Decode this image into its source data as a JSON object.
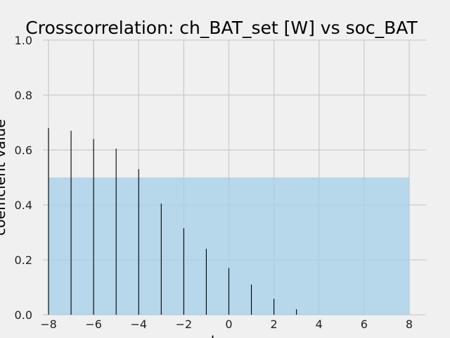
{
  "chart_data": {
    "type": "bar",
    "title": "Crosscorrelation: ch_BAT_set [W] vs soc_BAT",
    "xlabel": "lag",
    "ylabel": "coefficient value",
    "xlim": [
      -8.25,
      8.75
    ],
    "ylim": [
      0,
      1.0
    ],
    "xticks": [
      -8,
      -6,
      -4,
      -2,
      0,
      2,
      4,
      6,
      8
    ],
    "xtick_labels": [
      "−8",
      "−6",
      "−4",
      "−2",
      "0",
      "2",
      "4",
      "6",
      "8"
    ],
    "yticks": [
      0.0,
      0.2,
      0.4,
      0.6,
      0.8,
      1.0
    ],
    "ytick_labels": [
      "0.0",
      "0.2",
      "0.4",
      "0.6",
      "0.8",
      "1.0"
    ],
    "grid": true,
    "lags": [
      -8,
      -7,
      -6,
      -5,
      -4,
      -3,
      -2,
      -1,
      0,
      1,
      2,
      3
    ],
    "values": [
      0.68,
      0.67,
      0.64,
      0.605,
      0.53,
      0.405,
      0.315,
      0.24,
      0.17,
      0.11,
      0.058,
      0.02
    ],
    "threshold_band": {
      "x0": -8,
      "x1": 8,
      "y0": 0,
      "y1": 0.5
    },
    "colors": {
      "background": "#f0f0f0",
      "grid": "#cbcbcb",
      "band": "#a6d0e8",
      "bar": "#000000"
    }
  }
}
